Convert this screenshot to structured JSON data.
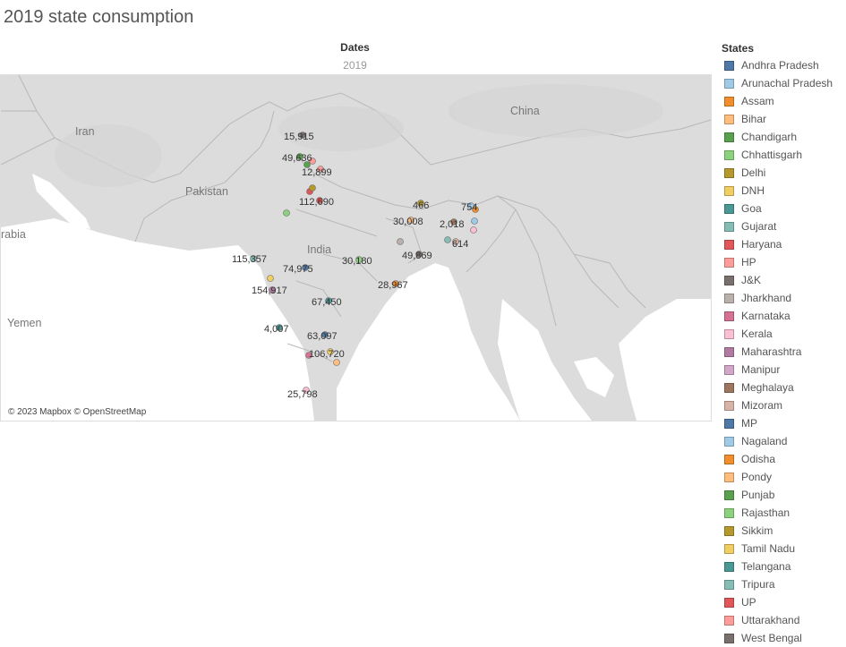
{
  "title": "2019 state consumption",
  "columns_header": "Dates",
  "column_value": "2019",
  "attribution": "© 2023 Mapbox © OpenStreetMap",
  "country_labels": [
    "China",
    "Iran",
    "Pakistan",
    "India",
    "rabia",
    "Yemen"
  ],
  "legend": {
    "title": "States",
    "items": [
      {
        "label": "Andhra Pradesh",
        "color": "#4e79a7"
      },
      {
        "label": "Arunachal Pradesh",
        "color": "#a0cbe8"
      },
      {
        "label": "Assam",
        "color": "#f28e2b"
      },
      {
        "label": "Bihar",
        "color": "#ffbe7d"
      },
      {
        "label": "Chandigarh",
        "color": "#59a14f"
      },
      {
        "label": "Chhattisgarh",
        "color": "#8cd17d"
      },
      {
        "label": "Delhi",
        "color": "#b6992d"
      },
      {
        "label": "DNH",
        "color": "#f1ce63"
      },
      {
        "label": "Goa",
        "color": "#499894"
      },
      {
        "label": "Gujarat",
        "color": "#86bcb6"
      },
      {
        "label": "Haryana",
        "color": "#e15759"
      },
      {
        "label": "HP",
        "color": "#ff9d9a"
      },
      {
        "label": "J&K",
        "color": "#79706e"
      },
      {
        "label": "Jharkhand",
        "color": "#bab0ac"
      },
      {
        "label": "Karnataka",
        "color": "#d37295"
      },
      {
        "label": "Kerala",
        "color": "#fabfd2"
      },
      {
        "label": "Maharashtra",
        "color": "#b07aa1"
      },
      {
        "label": "Manipur",
        "color": "#d4a6c8"
      },
      {
        "label": "Meghalaya",
        "color": "#9d7660"
      },
      {
        "label": "Mizoram",
        "color": "#d7b5a6"
      },
      {
        "label": "MP",
        "color": "#4e79a7"
      },
      {
        "label": "Nagaland",
        "color": "#a0cbe8"
      },
      {
        "label": "Odisha",
        "color": "#f28e2b"
      },
      {
        "label": "Pondy",
        "color": "#ffbe7d"
      },
      {
        "label": "Punjab",
        "color": "#59a14f"
      },
      {
        "label": "Rajasthan",
        "color": "#8cd17d"
      },
      {
        "label": "Sikkim",
        "color": "#b6992d"
      },
      {
        "label": "Tamil Nadu",
        "color": "#f1ce63"
      },
      {
        "label": "Telangana",
        "color": "#499894"
      },
      {
        "label": "Tripura",
        "color": "#86bcb6"
      },
      {
        "label": "UP",
        "color": "#e15759"
      },
      {
        "label": "Uttarakhand",
        "color": "#ff9d9a"
      },
      {
        "label": "West Bengal",
        "color": "#79706e"
      }
    ]
  },
  "value_labels": [
    "15,915",
    "49,636",
    "12,899",
    "112,690",
    "466",
    "754",
    "30,008",
    "2,018",
    "614",
    "49,869",
    "30,180",
    "115,357",
    "74,975",
    "154,917",
    "28,967",
    "67,450",
    "4,007",
    "63,097",
    "106,720",
    "25,798"
  ]
}
